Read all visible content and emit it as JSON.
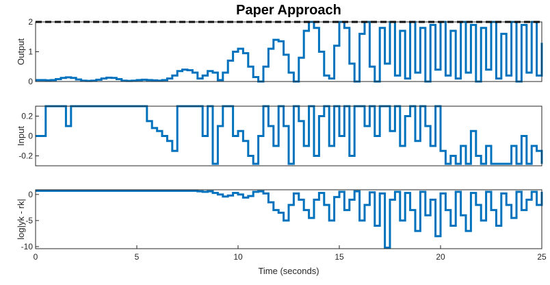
{
  "chart_data": [
    {
      "type": "stairs",
      "title": "Paper Approach",
      "ylabel": "Output",
      "xlim": [
        0,
        25
      ],
      "ylim": [
        0,
        2
      ],
      "yticks": [
        0,
        1,
        2
      ],
      "reference": {
        "value": 2,
        "color": "#000000"
      },
      "x": [
        0,
        0.25,
        0.5,
        0.75,
        1,
        1.25,
        1.5,
        1.75,
        2,
        2.25,
        2.5,
        2.75,
        3,
        3.25,
        3.5,
        3.75,
        4,
        4.25,
        4.5,
        4.75,
        5,
        5.25,
        5.5,
        5.75,
        6,
        6.25,
        6.5,
        6.75,
        7,
        7.25,
        7.5,
        7.75,
        8,
        8.25,
        8.5,
        8.75,
        9,
        9.25,
        9.5,
        9.75,
        10,
        10.25,
        10.5,
        10.75,
        11,
        11.25,
        11.5,
        11.75,
        12,
        12.25,
        12.5,
        12.75,
        13,
        13.25,
        13.5,
        13.75,
        14,
        14.25,
        14.5,
        14.75,
        15,
        15.25,
        15.5,
        15.75,
        16,
        16.25,
        16.5,
        16.75,
        17,
        17.25,
        17.5,
        17.75,
        18,
        18.25,
        18.5,
        18.75,
        19,
        19.25,
        19.5,
        19.75,
        20,
        20.25,
        20.5,
        20.75,
        21,
        21.25,
        21.5,
        21.75,
        22,
        22.25,
        22.5,
        22.75,
        23,
        23.25,
        23.5,
        23.75,
        24,
        24.25,
        24.5,
        24.75,
        25
      ],
      "series": [
        {
          "color": "#0072BD",
          "values": [
            0.05,
            0.05,
            0.04,
            0.05,
            0.08,
            0.12,
            0.14,
            0.12,
            0.07,
            0.03,
            0.02,
            0.03,
            0.06,
            0.1,
            0.13,
            0.12,
            0.08,
            0.03,
            0.02,
            0.03,
            0.05,
            0.06,
            0.05,
            0.04,
            0.03,
            0.05,
            0.1,
            0.2,
            0.35,
            0.4,
            0.38,
            0.3,
            0.1,
            0.2,
            0.35,
            0.3,
            0.05,
            0.3,
            0.7,
            1.0,
            1.1,
            0.95,
            0.5,
            0.15,
            0.0,
            0.5,
            1.1,
            1.4,
            1.35,
            0.9,
            0.3,
            0.0,
            0.8,
            1.7,
            2.0,
            1.8,
            1.0,
            0.2,
            0.1,
            1.2,
            2.0,
            1.8,
            0.6,
            0.0,
            1.6,
            2.0,
            0.5,
            0.0,
            1.8,
            0.6,
            2.0,
            0.2,
            1.7,
            0.1,
            2.0,
            0.3,
            1.8,
            0.0,
            1.9,
            0.4,
            2.0,
            0.2,
            1.7,
            0.1,
            2.0,
            0.3,
            1.9,
            0.0,
            1.8,
            0.4,
            2.0,
            0.1,
            1.6,
            0.2,
            2.0,
            0.0,
            1.9,
            0.3,
            2.0,
            0.2,
            1.3
          ]
        }
      ]
    },
    {
      "type": "stairs",
      "ylabel": "Input",
      "xlim": [
        0,
        25
      ],
      "ylim": [
        -0.3,
        0.3
      ],
      "yticks": [
        -0.2,
        0,
        0.2
      ],
      "x": [
        0,
        0.25,
        0.5,
        0.75,
        1,
        1.25,
        1.5,
        1.75,
        2,
        2.25,
        2.5,
        2.75,
        3,
        3.25,
        3.5,
        3.75,
        4,
        4.25,
        4.5,
        4.75,
        5,
        5.25,
        5.5,
        5.75,
        6,
        6.25,
        6.5,
        6.75,
        7,
        7.25,
        7.5,
        7.75,
        8,
        8.25,
        8.5,
        8.75,
        9,
        9.25,
        9.5,
        9.75,
        10,
        10.25,
        10.5,
        10.75,
        11,
        11.25,
        11.5,
        11.75,
        12,
        12.25,
        12.5,
        12.75,
        13,
        13.25,
        13.5,
        13.75,
        14,
        14.25,
        14.5,
        14.75,
        15,
        15.25,
        15.5,
        15.75,
        16,
        16.25,
        16.5,
        16.75,
        17,
        17.25,
        17.5,
        17.75,
        18,
        18.25,
        18.5,
        18.75,
        19,
        19.25,
        19.5,
        19.75,
        20,
        20.25,
        20.5,
        20.75,
        21,
        21.25,
        21.5,
        21.75,
        22,
        22.25,
        22.5,
        22.75,
        23,
        23.25,
        23.5,
        23.75,
        24,
        24.25,
        24.5,
        24.75,
        25
      ],
      "series": [
        {
          "color": "#0072BD",
          "values": [
            0,
            0,
            0.3,
            0.3,
            0.3,
            0.3,
            0.1,
            0.3,
            0.3,
            0.3,
            0.3,
            0.3,
            0.3,
            0.3,
            0.3,
            0.3,
            0.3,
            0.3,
            0.3,
            0.3,
            0.3,
            0.3,
            0.15,
            0.08,
            0.05,
            0.0,
            -0.05,
            -0.15,
            0.3,
            0.3,
            0.3,
            0.3,
            0.3,
            0.0,
            0.3,
            -0.28,
            0.1,
            0.3,
            0.3,
            0.0,
            0.05,
            -0.05,
            -0.2,
            -0.28,
            0.0,
            0.3,
            0.1,
            -0.1,
            0.3,
            0.1,
            -0.28,
            0.3,
            0.15,
            -0.1,
            0.3,
            -0.2,
            0.2,
            0.3,
            -0.1,
            0.3,
            0.0,
            0.3,
            -0.2,
            0.3,
            0.3,
            0.1,
            0.3,
            0.0,
            0.3,
            0.3,
            0.05,
            0.3,
            -0.1,
            0.2,
            0.3,
            -0.05,
            0.3,
            0.1,
            -0.1,
            0.3,
            -0.15,
            -0.28,
            -0.2,
            -0.28,
            -0.1,
            -0.28,
            0.05,
            -0.2,
            -0.28,
            -0.1,
            -0.28,
            -0.28,
            -0.28,
            -0.28,
            -0.1,
            -0.28,
            0.0,
            -0.28,
            -0.1,
            -0.15,
            -0.28
          ]
        }
      ]
    },
    {
      "type": "stairs",
      "ylabel": "log|yk - rk|",
      "xlabel": "Time (seconds)",
      "xlim": [
        0,
        25
      ],
      "xticks": [
        0,
        5,
        10,
        15,
        20,
        25
      ],
      "ylim": [
        -10.4,
        0.9
      ],
      "yticks": [
        -10,
        -5,
        0
      ],
      "x": [
        0,
        0.25,
        0.5,
        0.75,
        1,
        1.25,
        1.5,
        1.75,
        2,
        2.25,
        2.5,
        2.75,
        3,
        3.25,
        3.5,
        3.75,
        4,
        4.25,
        4.5,
        4.75,
        5,
        5.25,
        5.5,
        5.75,
        6,
        6.25,
        6.5,
        6.75,
        7,
        7.25,
        7.5,
        7.75,
        8,
        8.25,
        8.5,
        8.75,
        9,
        9.25,
        9.5,
        9.75,
        10,
        10.25,
        10.5,
        10.75,
        11,
        11.25,
        11.5,
        11.75,
        12,
        12.25,
        12.5,
        12.75,
        13,
        13.25,
        13.5,
        13.75,
        14,
        14.25,
        14.5,
        14.75,
        15,
        15.25,
        15.5,
        15.75,
        16,
        16.25,
        16.5,
        16.75,
        17,
        17.25,
        17.5,
        17.75,
        18,
        18.25,
        18.5,
        18.75,
        19,
        19.25,
        19.5,
        19.75,
        20,
        20.25,
        20.5,
        20.75,
        21,
        21.25,
        21.5,
        21.75,
        22,
        22.25,
        22.5,
        22.75,
        23,
        23.25,
        23.5,
        23.75,
        24,
        24.25,
        24.5,
        24.75,
        25
      ],
      "series": [
        {
          "color": "#0072BD",
          "values": [
            0.7,
            0.7,
            0.7,
            0.7,
            0.7,
            0.7,
            0.7,
            0.7,
            0.7,
            0.7,
            0.7,
            0.7,
            0.7,
            0.7,
            0.7,
            0.7,
            0.7,
            0.7,
            0.7,
            0.7,
            0.7,
            0.7,
            0.7,
            0.7,
            0.7,
            0.7,
            0.7,
            0.7,
            0.7,
            0.7,
            0.7,
            0.7,
            0.6,
            0.5,
            0.6,
            0.3,
            0.0,
            -0.4,
            -0.2,
            0.3,
            0.0,
            -0.6,
            -0.3,
            0.5,
            0.6,
            0.2,
            -1.5,
            -3.0,
            -3.5,
            -5.0,
            -2.0,
            0.2,
            -1.0,
            -3.0,
            -4.5,
            -1.0,
            0.3,
            -2.0,
            -5.0,
            -0.5,
            0.5,
            -3.0,
            -1.0,
            0.6,
            -5.0,
            -2.0,
            0.4,
            -6.0,
            0.2,
            -10.2,
            -1.0,
            0.5,
            -5.0,
            0.3,
            -3.0,
            -7.0,
            0.5,
            -4.0,
            -1.0,
            -8.0,
            0.2,
            -3.0,
            -6.0,
            0.5,
            -4.0,
            -7.0,
            0.3,
            -2.0,
            -5.0,
            0.5,
            -3.0,
            -6.0,
            0.2,
            -2.0,
            -4.5,
            0.5,
            -3.0,
            -1.0,
            0.5,
            -2.0,
            0.5
          ]
        }
      ]
    }
  ]
}
